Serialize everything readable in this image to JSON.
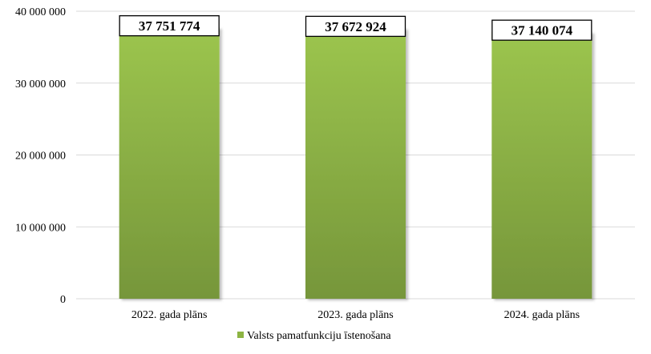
{
  "chart_data": {
    "type": "bar",
    "categories": [
      "2022. gada plāns",
      "2023. gada plāns",
      "2024. gada plāns"
    ],
    "series": [
      {
        "name": "Valsts pamatfunkciju īstenošana",
        "values": [
          37751774,
          37672924,
          37140074
        ],
        "color": "#8db443"
      }
    ],
    "data_labels": [
      "37 751 774",
      "37 672 924",
      "37 140 074"
    ],
    "y_ticks": [
      0,
      10000000,
      20000000,
      30000000,
      40000000
    ],
    "y_tick_labels": [
      "0",
      "10 000 000",
      "20 000 000",
      "30 000 000",
      "40 000 000"
    ],
    "ylim": [
      0,
      40000000
    ],
    "grid": true,
    "legend_position": "bottom",
    "title": "",
    "xlabel": "",
    "ylabel": ""
  }
}
